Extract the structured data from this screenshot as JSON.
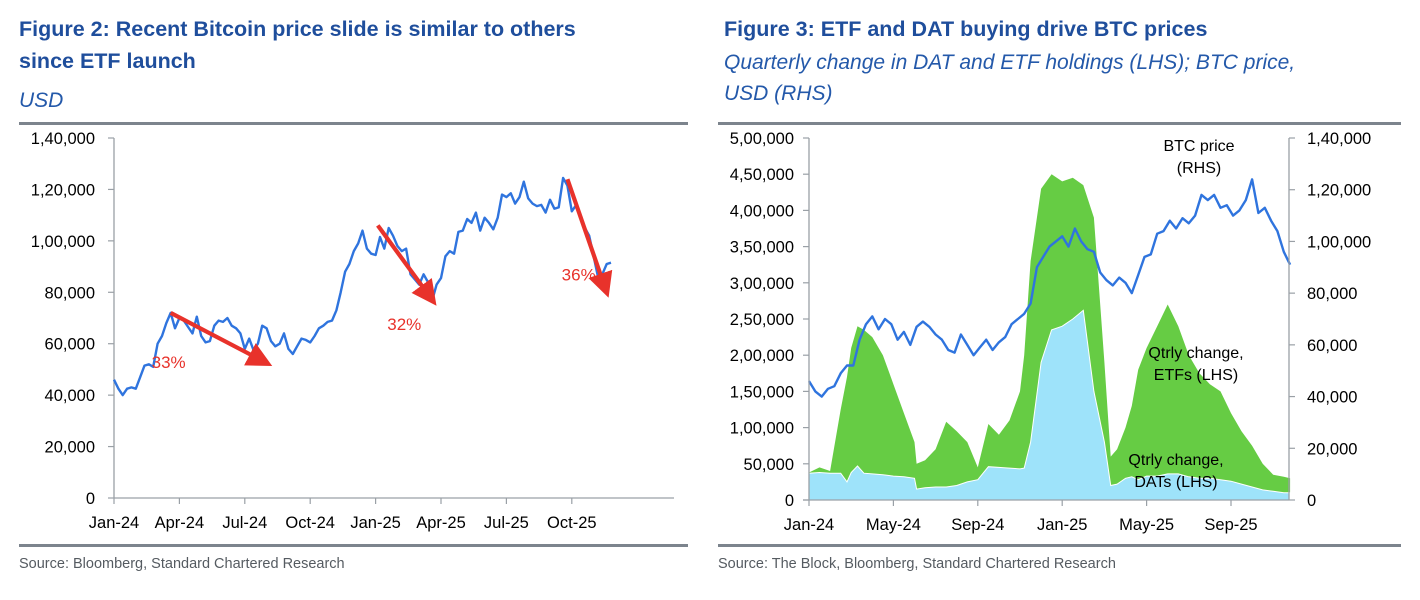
{
  "colors": {
    "title": "#1f4e9c",
    "price_line": "#2f74de",
    "arrow": "#e8322b",
    "etf_area": "#66cc44",
    "dat_area": "#9ee3fa",
    "axis": "#9aa0a6"
  },
  "chart_data": [
    {
      "id": "figure-2",
      "type": "line",
      "title": "Figure 2: Recent Bitcoin price slide is similar to others since ETF launch",
      "title_lines": [
        "Figure 2: Recent Bitcoin price slide is similar to others",
        "since ETF launch"
      ],
      "subtitle": "USD",
      "source": "Source: Bloomberg, Standard Chartered Research",
      "xlabel": "",
      "ylabel": "",
      "ylim": [
        0,
        140000
      ],
      "xlim_months": [
        0,
        23.0
      ],
      "grid": false,
      "legend": "none",
      "y_ticks": [
        0,
        20000,
        40000,
        60000,
        80000,
        100000,
        120000,
        140000
      ],
      "y_tick_labels": [
        "0",
        "20,000",
        "40,000",
        "60,000",
        "80,000",
        "1,00,000",
        "1,20,000",
        "1,40,000"
      ],
      "x_ticks_months": [
        0,
        3,
        6,
        9,
        12,
        15,
        18,
        21
      ],
      "x_tick_labels": [
        "Jan-24",
        "Apr-24",
        "Jul-24",
        "Oct-24",
        "Jan-25",
        "Apr-25",
        "Jul-25",
        "Oct-25"
      ],
      "series": [
        {
          "name": "BTC price",
          "x_months": [
            0,
            0.2,
            0.4,
            0.6,
            0.8,
            1.0,
            1.2,
            1.4,
            1.6,
            1.8,
            2.0,
            2.2,
            2.4,
            2.6,
            2.8,
            3.0,
            3.2,
            3.4,
            3.6,
            3.8,
            4.0,
            4.2,
            4.4,
            4.6,
            4.8,
            5.0,
            5.2,
            5.4,
            5.6,
            5.8,
            6.0,
            6.2,
            6.4,
            6.6,
            6.8,
            7.0,
            7.2,
            7.4,
            7.6,
            7.8,
            8.0,
            8.2,
            8.4,
            8.6,
            8.8,
            9.0,
            9.2,
            9.4,
            9.6,
            9.8,
            10.0,
            10.2,
            10.4,
            10.6,
            10.8,
            11.0,
            11.2,
            11.4,
            11.6,
            11.8,
            12.0,
            12.2,
            12.4,
            12.6,
            12.8,
            13.0,
            13.2,
            13.4,
            13.6,
            13.8,
            14.0,
            14.2,
            14.4,
            14.6,
            14.8,
            15.0,
            15.2,
            15.4,
            15.6,
            15.8,
            16.0,
            16.2,
            16.4,
            16.6,
            16.8,
            17.0,
            17.2,
            17.4,
            17.6,
            17.8,
            18.0,
            18.2,
            18.4,
            18.6,
            18.8,
            19.0,
            19.2,
            19.4,
            19.6,
            19.8,
            20.0,
            20.2,
            20.4,
            20.6,
            20.8,
            21.0,
            21.2,
            21.4,
            21.6,
            21.8,
            22.0,
            22.2,
            22.4,
            22.6,
            22.8
          ],
          "values": [
            46000,
            42500,
            40000,
            42500,
            43000,
            42500,
            47000,
            51500,
            52000,
            51000,
            60000,
            63000,
            68000,
            72000,
            66000,
            70000,
            69000,
            66500,
            64000,
            70500,
            63000,
            60500,
            61000,
            67000,
            69000,
            68500,
            70000,
            67000,
            66000,
            64000,
            58000,
            62000,
            57500,
            60000,
            67000,
            66000,
            61000,
            59000,
            60000,
            64000,
            58000,
            56000,
            59000,
            62000,
            61500,
            60500,
            63000,
            66000,
            67000,
            68500,
            69000,
            73000,
            80000,
            88000,
            91000,
            96000,
            99000,
            104000,
            97000,
            95000,
            94500,
            101500,
            97000,
            105000,
            102000,
            98000,
            96000,
            97000,
            87000,
            85000,
            83000,
            87000,
            84000,
            77000,
            83000,
            85500,
            94000,
            96000,
            95000,
            103500,
            104000,
            108500,
            107000,
            111000,
            104000,
            109000,
            107000,
            104500,
            109000,
            118000,
            117000,
            118500,
            114500,
            117000,
            123000,
            116500,
            114500,
            113500,
            114000,
            111000,
            116000,
            112500,
            113000,
            124500,
            121500,
            111500,
            114000,
            109000,
            105000,
            102000,
            94000,
            86000,
            87000,
            91000,
            91500
          ]
        }
      ],
      "annotations": [
        {
          "label": "33%",
          "from": {
            "x_months": 2.6,
            "value": 72000
          },
          "to": {
            "x_months": 7.0,
            "value": 52500
          }
        },
        {
          "label": "32%",
          "from": {
            "x_months": 12.1,
            "value": 106000
          },
          "to": {
            "x_months": 14.6,
            "value": 77000
          }
        },
        {
          "label": "36%",
          "from": {
            "x_months": 20.8,
            "value": 124000
          },
          "to": {
            "x_months": 22.6,
            "value": 80000
          }
        }
      ]
    },
    {
      "id": "figure-3",
      "type": "area",
      "title": "Figure 3: ETF and DAT buying drive BTC prices",
      "subtitle_lines": [
        "Quarterly change in DAT and ETF holdings (LHS); BTC price,",
        "USD (RHS)"
      ],
      "subtitle": "Quarterly change in DAT and ETF holdings (LHS); BTC price, USD (RHS)",
      "source": "Source: The Block, Bloomberg, Standard Chartered Research",
      "xlabel": "",
      "ylabel_left": "",
      "ylabel_right": "",
      "ylim_left": [
        0,
        500000
      ],
      "ylim_right": [
        0,
        140000
      ],
      "xlim_months": [
        0,
        22.8
      ],
      "grid": false,
      "legend": "inline-labels",
      "y_left_ticks": [
        0,
        50000,
        100000,
        150000,
        200000,
        250000,
        300000,
        350000,
        400000,
        450000,
        500000
      ],
      "y_left_tick_labels": [
        "0",
        "50,000",
        "1,00,000",
        "1,50,000",
        "2,00,000",
        "2,50,000",
        "3,00,000",
        "3,50,000",
        "4,00,000",
        "4,50,000",
        "5,00,000"
      ],
      "y_right_ticks": [
        0,
        20000,
        40000,
        60000,
        80000,
        100000,
        120000,
        140000
      ],
      "y_right_tick_labels": [
        "0",
        "20,000",
        "40,000",
        "60,000",
        "80,000",
        "1,00,000",
        "1,20,000",
        "1,40,000"
      ],
      "x_ticks_months": [
        0,
        4,
        8,
        12,
        16,
        20
      ],
      "x_tick_labels": [
        "Jan-24",
        "May-24",
        "Sep-24",
        "Jan-25",
        "May-25",
        "Sep-25"
      ],
      "series": [
        {
          "name": "Qtrly change, DATs (LHS)",
          "axis": "left",
          "stack": "base",
          "x_months": [
            0,
            0.5,
            1.0,
            1.5,
            1.8,
            2.0,
            2.3,
            2.6,
            3.0,
            3.5,
            4.0,
            4.5,
            5.0,
            5.1,
            5.5,
            6.0,
            6.5,
            7.0,
            7.5,
            8.0,
            8.5,
            9.0,
            9.5,
            10.0,
            10.2,
            10.5,
            11.0,
            11.5,
            12.0,
            12.5,
            13.0,
            13.5,
            14.0,
            14.3,
            14.6,
            15.0,
            15.3,
            15.6,
            16.0,
            16.5,
            17.0,
            17.5,
            18.0,
            18.5,
            19.0,
            19.5,
            20.0,
            20.5,
            21.0,
            21.5,
            22.0,
            22.5,
            22.8
          ],
          "values": [
            37000,
            38000,
            37000,
            37000,
            25000,
            38000,
            47000,
            37000,
            36000,
            35000,
            33000,
            32000,
            30000,
            15000,
            17000,
            18000,
            18000,
            20000,
            25000,
            28000,
            46000,
            45000,
            44000,
            43000,
            44000,
            80000,
            190000,
            235000,
            240000,
            250000,
            262000,
            150000,
            80000,
            20000,
            22000,
            30000,
            32000,
            28000,
            33000,
            33000,
            36000,
            36000,
            32000,
            30000,
            30000,
            28000,
            26000,
            22000,
            18000,
            14000,
            12000,
            10000,
            10000
          ]
        },
        {
          "name": "Qtrly change, ETFs (LHS)",
          "axis": "left",
          "stack": "total",
          "note": "Total height of stacked area (DAT + ETF)",
          "x_months": [
            0,
            0.5,
            1.0,
            1.5,
            1.8,
            2.0,
            2.3,
            2.6,
            3.0,
            3.5,
            4.0,
            4.5,
            5.0,
            5.1,
            5.5,
            6.0,
            6.5,
            7.0,
            7.5,
            8.0,
            8.5,
            9.0,
            9.5,
            10.0,
            10.2,
            10.5,
            11.0,
            11.5,
            12.0,
            12.5,
            13.0,
            13.5,
            14.0,
            14.3,
            14.6,
            15.0,
            15.3,
            15.6,
            16.0,
            16.5,
            17.0,
            17.5,
            18.0,
            18.5,
            19.0,
            19.5,
            20.0,
            20.5,
            21.0,
            21.5,
            22.0,
            22.5,
            22.8
          ],
          "values": [
            38000,
            45000,
            40000,
            125000,
            170000,
            210000,
            240000,
            235000,
            225000,
            200000,
            160000,
            120000,
            80000,
            50000,
            55000,
            70000,
            108000,
            95000,
            80000,
            45000,
            105000,
            90000,
            110000,
            150000,
            200000,
            330000,
            430000,
            450000,
            440000,
            445000,
            435000,
            390000,
            190000,
            60000,
            70000,
            100000,
            130000,
            180000,
            210000,
            240000,
            270000,
            240000,
            200000,
            175000,
            160000,
            150000,
            120000,
            95000,
            75000,
            50000,
            35000,
            32000,
            30000
          ]
        },
        {
          "name": "BTC price (RHS)",
          "axis": "right",
          "type": "line",
          "x_months": [
            0,
            0.3,
            0.6,
            0.9,
            1.2,
            1.5,
            1.8,
            2.1,
            2.4,
            2.7,
            3.0,
            3.3,
            3.6,
            3.9,
            4.2,
            4.5,
            4.8,
            5.1,
            5.4,
            5.7,
            6.0,
            6.3,
            6.6,
            6.9,
            7.2,
            7.5,
            7.8,
            8.1,
            8.4,
            8.7,
            9.0,
            9.3,
            9.6,
            9.9,
            10.2,
            10.5,
            10.8,
            11.1,
            11.4,
            11.7,
            12.0,
            12.3,
            12.6,
            12.9,
            13.2,
            13.5,
            13.8,
            14.1,
            14.4,
            14.7,
            15.0,
            15.3,
            15.6,
            15.9,
            16.2,
            16.5,
            16.8,
            17.1,
            17.4,
            17.7,
            18.0,
            18.3,
            18.6,
            18.9,
            19.2,
            19.5,
            19.8,
            20.1,
            20.4,
            20.7,
            21.0,
            21.3,
            21.6,
            21.9,
            22.2,
            22.5,
            22.8
          ],
          "values": [
            46000,
            42000,
            40000,
            43000,
            44000,
            49000,
            52000,
            52000,
            62000,
            68000,
            71000,
            66000,
            70000,
            68000,
            62000,
            65000,
            60000,
            67000,
            69000,
            67000,
            64000,
            62000,
            58000,
            57000,
            64000,
            60000,
            56000,
            59000,
            62000,
            58000,
            61000,
            63000,
            68000,
            70000,
            72000,
            76000,
            90000,
            94000,
            98000,
            100000,
            102000,
            98000,
            105000,
            100000,
            97000,
            96000,
            88000,
            85000,
            83000,
            86000,
            84000,
            80000,
            87000,
            94000,
            95000,
            103000,
            104000,
            108000,
            105000,
            109000,
            107000,
            110000,
            118000,
            116000,
            118000,
            113000,
            114000,
            110000,
            112000,
            116000,
            124000,
            111000,
            113000,
            108000,
            104000,
            96000,
            91000
          ]
        }
      ],
      "annotations": [
        {
          "label_lines": [
            "BTC price",
            "(RHS)"
          ],
          "target": "BTC price"
        },
        {
          "label_lines": [
            "Qtrly change,",
            "ETFs (LHS)"
          ],
          "target": "ETFs"
        },
        {
          "label_lines": [
            "Qtrly change,",
            "DATs (LHS)"
          ],
          "target": "DATs"
        }
      ]
    }
  ]
}
